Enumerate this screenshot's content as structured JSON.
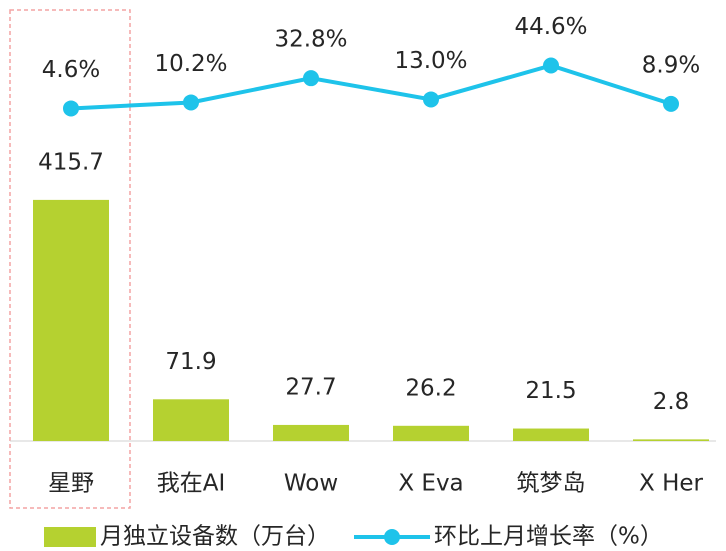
{
  "chart_data": {
    "type": "bar_line",
    "categories": [
      "星野",
      "我在AI",
      "Wow",
      "X Eva",
      "筑梦岛",
      "X Her"
    ],
    "series": [
      {
        "name": "月独立设备数（万台）",
        "type": "bar",
        "color": "#b5d130",
        "values": [
          415.7,
          71.9,
          27.7,
          26.2,
          21.5,
          2.8
        ]
      },
      {
        "name": "环比上月增长率（%）",
        "type": "line",
        "axis": "y2",
        "color": "#1ec3ea",
        "values": [
          4.6,
          10.2,
          32.8,
          13.0,
          44.6,
          8.9
        ],
        "value_labels": [
          "4.6%",
          "10.2%",
          "32.8%",
          "13.0%",
          "44.6%",
          "8.9%"
        ]
      }
    ],
    "ylim": [
      0,
      700
    ],
    "y2lim": [
      -305,
      73
    ],
    "legend": "bottom"
  }
}
